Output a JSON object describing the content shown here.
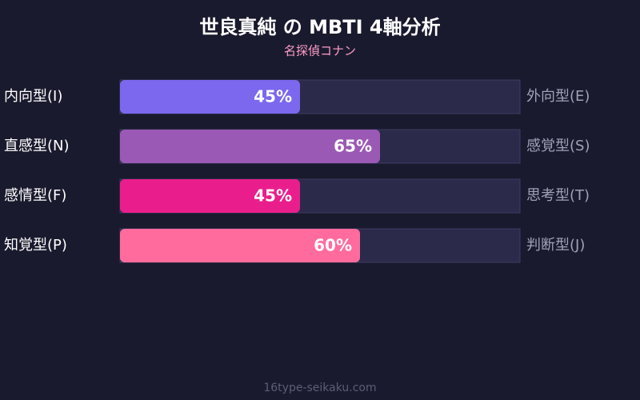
{
  "chart_data": {
    "type": "bar",
    "orientation": "horizontal",
    "title": "世良真純 の MBTI 4軸分析",
    "subtitle": "名探偵コナン",
    "categories": [
      "内向型(I)",
      "直感型(N)",
      "感情型(F)",
      "知覚型(P)"
    ],
    "opposite_categories": [
      "外向型(E)",
      "感覚型(S)",
      "思考型(T)",
      "判断型(J)"
    ],
    "values": [
      45,
      65,
      45,
      60
    ],
    "value_labels": [
      "45%",
      "65%",
      "45%",
      "60%"
    ],
    "colors": [
      "#7b68ee",
      "#9b59b6",
      "#e91e8c",
      "#ff6b9d"
    ],
    "xlim": [
      0,
      100
    ],
    "footer": "16type-seikaku.com"
  }
}
